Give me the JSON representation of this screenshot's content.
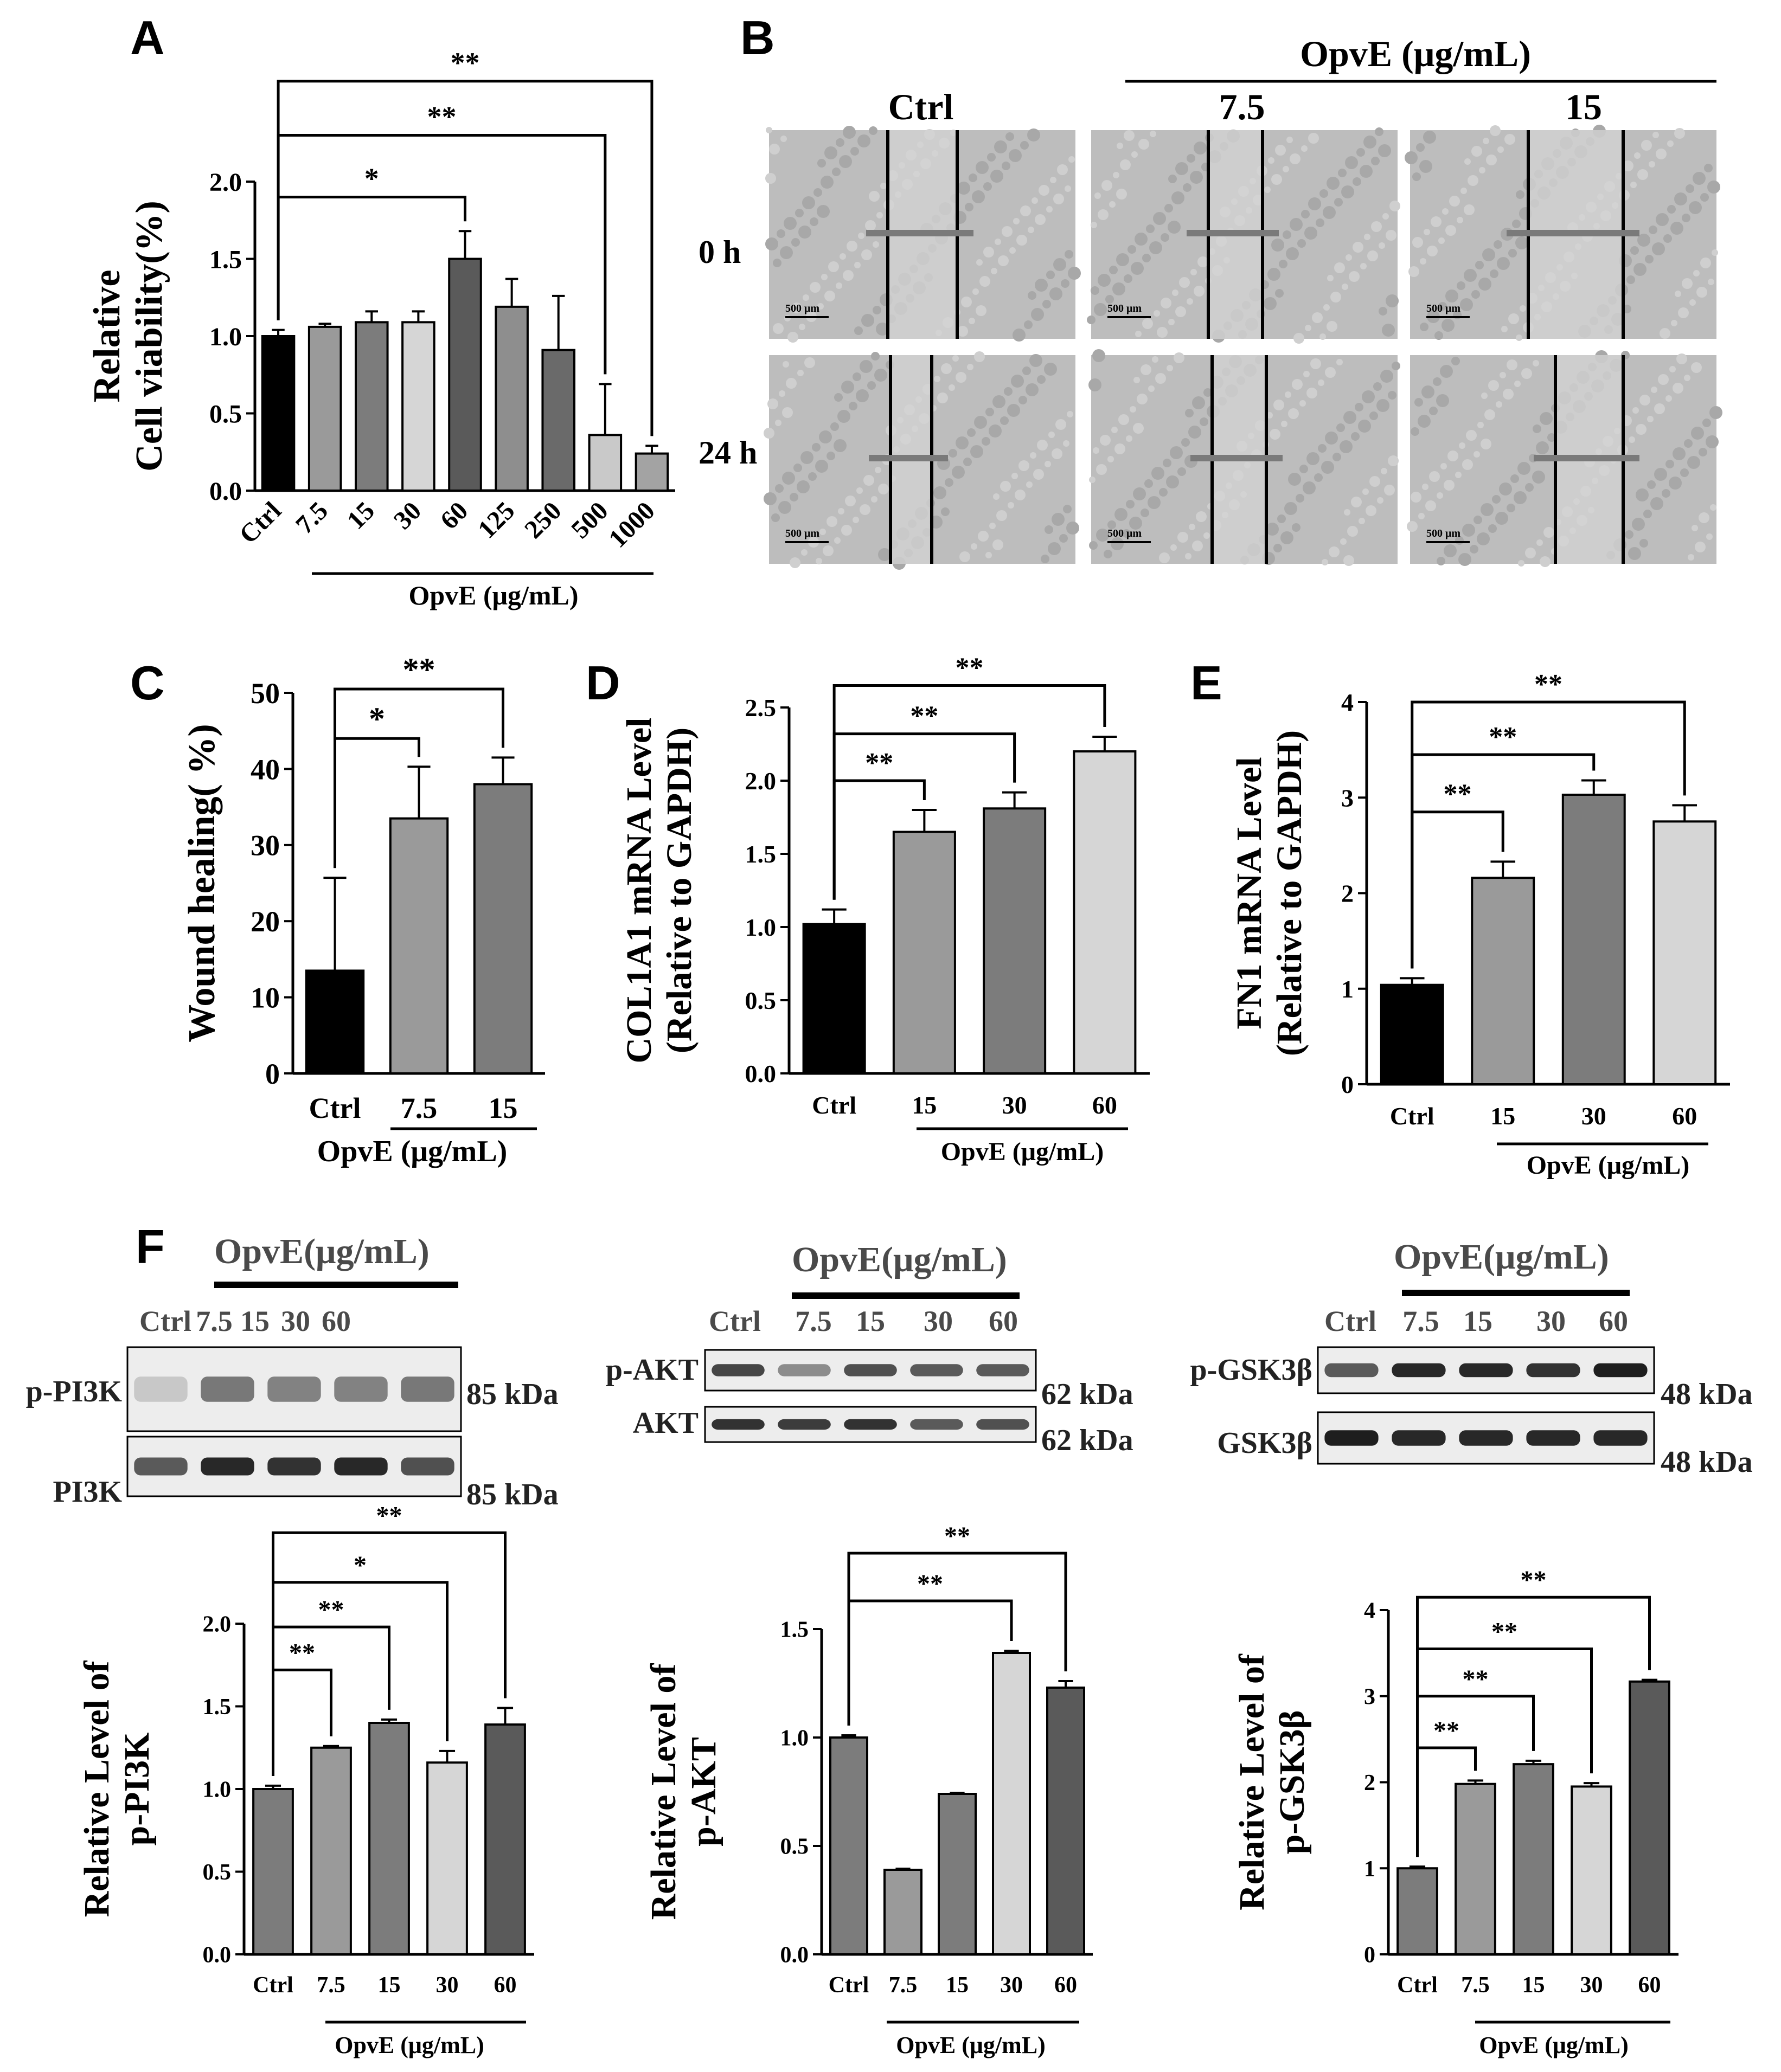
{
  "panel_letters": [
    "A",
    "B",
    "C",
    "D",
    "E",
    "F"
  ],
  "chart_data": [
    {
      "id": "A",
      "type": "bar",
      "title": "",
      "ylabel_lines": [
        "Relative",
        "Cell viability(%)"
      ],
      "xlabel": "OpvE (μg/mL)",
      "categories": [
        "Ctrl",
        "7.5",
        "15",
        "30",
        "60",
        "125",
        "250",
        "500",
        "1000"
      ],
      "values": [
        1.0,
        1.06,
        1.09,
        1.09,
        1.5,
        1.19,
        0.91,
        0.36,
        0.24
      ],
      "errors": [
        0.04,
        0.02,
        0.07,
        0.07,
        0.18,
        0.18,
        0.35,
        0.33,
        0.05
      ],
      "colors": [
        "#000000",
        "#9a9a9a",
        "#7c7c7c",
        "#d6d6d6",
        "#5a5a5a",
        "#8e8e8e",
        "#6a6a6a",
        "#c9c9c9",
        "#a3a3a3"
      ],
      "ylim": [
        0,
        2.0
      ],
      "yticks": [
        "0.0",
        "0.5",
        "1.0",
        "1.5",
        "2.0"
      ],
      "ytick_values": [
        0,
        0.5,
        1.0,
        1.5,
        2.0
      ],
      "significance": [
        {
          "from": 0,
          "to": 4,
          "label": "*",
          "y": 1.9
        },
        {
          "from": 0,
          "to": 7,
          "label": "**",
          "y": 2.3
        },
        {
          "from": 0,
          "to": 8,
          "label": "**",
          "y": 2.65
        }
      ]
    },
    {
      "id": "C",
      "type": "bar",
      "ylabel_lines": [
        "Wound healing( %)"
      ],
      "xlabel": "OpvE (μg/mL)",
      "categories": [
        "Ctrl",
        "7.5",
        "15"
      ],
      "values": [
        13.5,
        33.5,
        38.0
      ],
      "errors": [
        12.2,
        6.8,
        3.5
      ],
      "colors": [
        "#000000",
        "#9a9a9a",
        "#7c7c7c"
      ],
      "ylim": [
        0,
        50
      ],
      "yticks": [
        "0",
        "10",
        "20",
        "30",
        "40",
        "50"
      ],
      "ytick_values": [
        0,
        10,
        20,
        30,
        40,
        50
      ],
      "significance": [
        {
          "from": 0,
          "to": 1,
          "label": "*",
          "y": 44.0
        },
        {
          "from": 0,
          "to": 2,
          "label": "**",
          "y": 50.5
        }
      ]
    },
    {
      "id": "D",
      "type": "bar",
      "ylabel_lines": [
        "COL1A1 mRNA Level",
        "(Relative to GAPDH)"
      ],
      "xlabel": "OpvE (μg/mL)",
      "categories": [
        "Ctrl",
        "15",
        "30",
        "60"
      ],
      "values": [
        1.02,
        1.65,
        1.81,
        2.2
      ],
      "errors": [
        0.1,
        0.15,
        0.11,
        0.1
      ],
      "colors": [
        "#000000",
        "#9a9a9a",
        "#7c7c7c",
        "#d6d6d6"
      ],
      "ylim": [
        0,
        2.5
      ],
      "yticks": [
        "0.0",
        "0.5",
        "1.0",
        "1.5",
        "2.0",
        "2.5"
      ],
      "ytick_values": [
        0,
        0.5,
        1.0,
        1.5,
        2.0,
        2.5
      ],
      "significance": [
        {
          "from": 0,
          "to": 1,
          "label": "**",
          "y": 2.0
        },
        {
          "from": 0,
          "to": 2,
          "label": "**",
          "y": 2.32
        },
        {
          "from": 0,
          "to": 3,
          "label": "**",
          "y": 2.65
        }
      ]
    },
    {
      "id": "E",
      "type": "bar",
      "ylabel_lines": [
        "FN1 mRNA Level",
        "(Relative to GAPDH)"
      ],
      "xlabel": "OpvE (μg/mL)",
      "categories": [
        "Ctrl",
        "15",
        "30",
        "60"
      ],
      "values": [
        1.04,
        2.16,
        3.03,
        2.75
      ],
      "errors": [
        0.07,
        0.17,
        0.15,
        0.17
      ],
      "colors": [
        "#000000",
        "#9a9a9a",
        "#7c7c7c",
        "#d6d6d6"
      ],
      "ylim": [
        0,
        4
      ],
      "yticks": [
        "0",
        "1",
        "2",
        "3",
        "4"
      ],
      "ytick_values": [
        0,
        1,
        2,
        3,
        4
      ],
      "significance": [
        {
          "from": 0,
          "to": 1,
          "label": "**",
          "y": 2.85
        },
        {
          "from": 0,
          "to": 2,
          "label": "**",
          "y": 3.45
        },
        {
          "from": 0,
          "to": 3,
          "label": "**",
          "y": 4.0
        }
      ]
    },
    {
      "id": "F1",
      "type": "bar",
      "ylabel_lines": [
        "Relative Level of",
        "p-PI3K"
      ],
      "xlabel": "OpvE (μg/mL)",
      "categories": [
        "Ctrl",
        "7.5",
        "15",
        "30",
        "60"
      ],
      "values": [
        1.0,
        1.25,
        1.4,
        1.16,
        1.39
      ],
      "errors": [
        0.02,
        0.01,
        0.02,
        0.07,
        0.1
      ],
      "colors": [
        "#7c7c7c",
        "#9a9a9a",
        "#7c7c7c",
        "#d6d6d6",
        "#5a5a5a"
      ],
      "ylim": [
        0,
        2.0
      ],
      "yticks": [
        "0.0",
        "0.5",
        "1.0",
        "1.5",
        "2.0"
      ],
      "ytick_values": [
        0,
        0.5,
        1.0,
        1.5,
        2.0
      ],
      "significance": [
        {
          "from": 0,
          "to": 1,
          "label": "**",
          "y": 1.72
        },
        {
          "from": 0,
          "to": 2,
          "label": "**",
          "y": 1.98
        },
        {
          "from": 0,
          "to": 3,
          "label": "*",
          "y": 2.25
        },
        {
          "from": 0,
          "to": 4,
          "label": "**",
          "y": 2.55
        }
      ]
    },
    {
      "id": "F2",
      "type": "bar",
      "ylabel_lines": [
        "Relative Level of",
        "p-AKT"
      ],
      "xlabel": "OpvE (μg/mL)",
      "categories": [
        "Ctrl",
        "7.5",
        "15",
        "30",
        "60"
      ],
      "values": [
        1.0,
        0.39,
        0.74,
        1.39,
        1.23
      ],
      "errors": [
        0.01,
        0.005,
        0.005,
        0.01,
        0.03
      ],
      "colors": [
        "#7c7c7c",
        "#9a9a9a",
        "#7c7c7c",
        "#d6d6d6",
        "#5a5a5a"
      ],
      "ylim": [
        0,
        1.5
      ],
      "yticks": [
        "0.0",
        "0.5",
        "1.0",
        "1.5"
      ],
      "ytick_values": [
        0,
        0.5,
        1.0,
        1.5
      ],
      "significance": [
        {
          "from": 0,
          "to": 3,
          "label": "**",
          "y": 1.63
        },
        {
          "from": 0,
          "to": 4,
          "label": "**",
          "y": 1.85
        }
      ]
    },
    {
      "id": "F3",
      "type": "bar",
      "ylabel_lines": [
        "Relative Level of",
        "p-GSK3β"
      ],
      "xlabel": "OpvE (μg/mL)",
      "categories": [
        "Ctrl",
        "7.5",
        "15",
        "30",
        "60"
      ],
      "values": [
        1.0,
        1.98,
        2.21,
        1.95,
        3.17
      ],
      "errors": [
        0.02,
        0.04,
        0.04,
        0.04,
        0.02
      ],
      "colors": [
        "#7c7c7c",
        "#9a9a9a",
        "#7c7c7c",
        "#d6d6d6",
        "#5a5a5a"
      ],
      "ylim": [
        0,
        4
      ],
      "yticks": [
        "0",
        "1",
        "2",
        "3",
        "4"
      ],
      "ytick_values": [
        0,
        1,
        2,
        3,
        4
      ],
      "significance": [
        {
          "from": 0,
          "to": 1,
          "label": "**",
          "y": 2.4
        },
        {
          "from": 0,
          "to": 2,
          "label": "**",
          "y": 3.0
        },
        {
          "from": 0,
          "to": 3,
          "label": "**",
          "y": 3.55
        },
        {
          "from": 0,
          "to": 4,
          "label": "**",
          "y": 4.15
        }
      ]
    }
  ],
  "panel_B": {
    "header": "OpvE (μg/mL)",
    "columns": [
      "Ctrl",
      "7.5",
      "15"
    ],
    "rows": [
      "0 h",
      "24 h"
    ],
    "scale_bar": "500 μm"
  },
  "blots": [
    {
      "id": "pi3k",
      "header": "OpvE(μg/mL)",
      "lanes": [
        "Ctrl",
        "7.5",
        "15",
        "30",
        "60"
      ],
      "rows": [
        {
          "label": "p-PI3K",
          "kda": "85 kDa",
          "intensities": [
            0.15,
            0.55,
            0.5,
            0.5,
            0.55
          ]
        },
        {
          "label": "PI3K",
          "kda": "85 kDa",
          "intensities": [
            0.7,
            0.95,
            0.9,
            0.95,
            0.75
          ]
        }
      ]
    },
    {
      "id": "akt",
      "header": "OpvE(μg/mL)",
      "lanes": [
        "Ctrl",
        "7.5",
        "15",
        "30",
        "60"
      ],
      "rows": [
        {
          "label": "p-AKT",
          "kda": "62 kDa",
          "intensities": [
            0.8,
            0.45,
            0.75,
            0.7,
            0.7
          ]
        },
        {
          "label": "AKT",
          "kda": "62 kDa",
          "intensities": [
            0.9,
            0.85,
            0.9,
            0.7,
            0.75
          ]
        }
      ]
    },
    {
      "id": "gsk",
      "header": "OpvE(μg/mL)",
      "lanes": [
        "Ctrl",
        "7.5",
        "15",
        "30",
        "60"
      ],
      "rows": [
        {
          "label": "p-GSK3β",
          "kda": "48 kDa",
          "intensities": [
            0.7,
            0.95,
            0.95,
            0.9,
            1.0
          ]
        },
        {
          "label": "GSK3β",
          "kda": "48 kDa",
          "intensities": [
            1.0,
            0.95,
            0.95,
            0.95,
            0.95
          ]
        }
      ]
    }
  ]
}
